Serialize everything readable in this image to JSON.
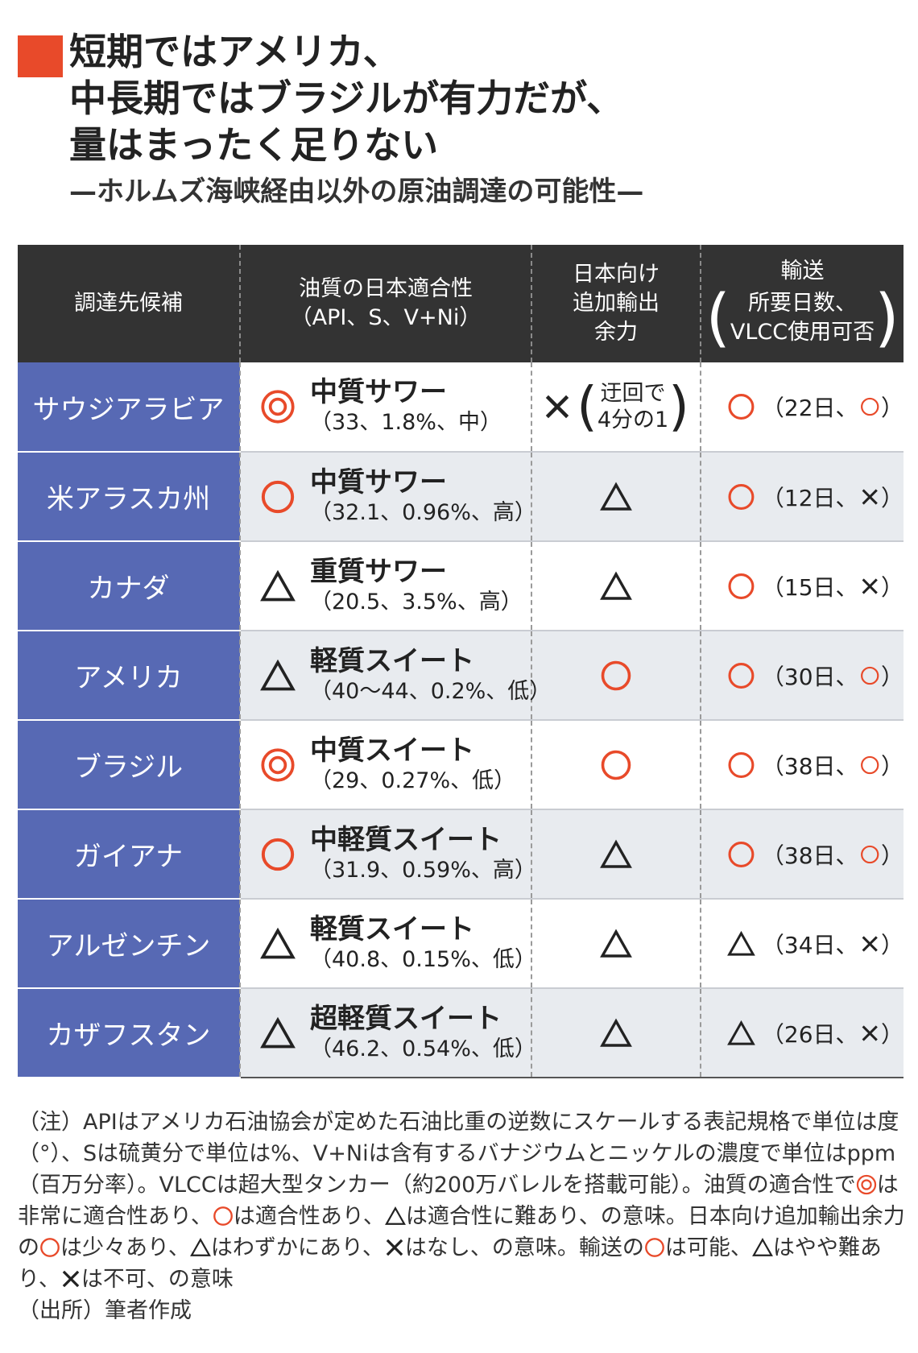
{
  "header": {
    "title_lines": [
      "短期ではアメリカ、",
      "中長期ではブラジルが有力だが、",
      "量はまったく足りない"
    ],
    "subtitle": "—ホルムズ海峡経由以外の原油調達の可能性—",
    "accent_color": "#e84a2a"
  },
  "table": {
    "columns": {
      "candidate": "調達先候補",
      "quality_l1": "油質の日本適合性",
      "quality_l2": "（API、S、V+Ni）",
      "export_l1": "日本向け",
      "export_l2": "追加輸出",
      "export_l3": "余力",
      "transport_l1": "輸送",
      "transport_l2": "所要日数、",
      "transport_l3": "VLCC使用可否"
    },
    "rows": [
      {
        "name": "サウジアラビア",
        "quality_symbol": "double-circle-icon",
        "quality_name": "中質サワー",
        "quality_values": "（33、1.8%、中）",
        "export_symbol": "cross-icon",
        "export_note_l1": "迂回で",
        "export_note_l2": "4分の1",
        "transport_symbol": "circle-icon",
        "transport_days": "（22日、",
        "transport_vlcc_symbol": "circle-icon",
        "transport_close": "）"
      },
      {
        "name": "米アラスカ州",
        "quality_symbol": "circle-icon",
        "quality_name": "中質サワー",
        "quality_values": "（32.1、0.96%、高）",
        "export_symbol": "triangle-icon",
        "transport_symbol": "circle-icon",
        "transport_days": "（12日、",
        "transport_vlcc_symbol": "cross-icon",
        "transport_close": "）"
      },
      {
        "name": "カナダ",
        "quality_symbol": "triangle-icon",
        "quality_name": "重質サワー",
        "quality_values": "（20.5、3.5%、高）",
        "export_symbol": "triangle-icon",
        "transport_symbol": "circle-icon",
        "transport_days": "（15日、",
        "transport_vlcc_symbol": "cross-icon",
        "transport_close": "）"
      },
      {
        "name": "アメリカ",
        "quality_symbol": "triangle-icon",
        "quality_name": "軽質スイート",
        "quality_values": "（40〜44、0.2%、低）",
        "export_symbol": "circle-icon",
        "transport_symbol": "circle-icon",
        "transport_days": "（30日、",
        "transport_vlcc_symbol": "circle-icon",
        "transport_close": "）"
      },
      {
        "name": "ブラジル",
        "quality_symbol": "double-circle-icon",
        "quality_name": "中質スイート",
        "quality_values": "（29、0.27%、低）",
        "export_symbol": "circle-icon",
        "transport_symbol": "circle-icon",
        "transport_days": "（38日、",
        "transport_vlcc_symbol": "circle-icon",
        "transport_close": "）"
      },
      {
        "name": "ガイアナ",
        "quality_symbol": "circle-icon",
        "quality_name": "中軽質スイート",
        "quality_values": "（31.9、0.59%、高）",
        "export_symbol": "triangle-icon",
        "transport_symbol": "circle-icon",
        "transport_days": "（38日、",
        "transport_vlcc_symbol": "circle-icon",
        "transport_close": "）"
      },
      {
        "name": "アルゼンチン",
        "quality_symbol": "triangle-icon",
        "quality_name": "軽質スイート",
        "quality_values": "（40.8、0.15%、低）",
        "export_symbol": "triangle-icon",
        "transport_symbol": "triangle-icon",
        "transport_days": "（34日、",
        "transport_vlcc_symbol": "cross-icon",
        "transport_close": "）"
      },
      {
        "name": "カザフスタン",
        "quality_symbol": "triangle-icon",
        "quality_name": "超軽質スイート",
        "quality_values": "（46.2、0.54%、低）",
        "export_symbol": "triangle-icon",
        "transport_symbol": "triangle-icon",
        "transport_days": "（26日、",
        "transport_vlcc_symbol": "cross-icon",
        "transport_close": "）"
      }
    ]
  },
  "notes": {
    "p1": "（注）APIはアメリカ石油協会が定めた石油比重の逆数にスケールする表記規格で単位は度（°）、Sは硫黄分で単位は%、V+Niは含有するバナジウムとニッケルの濃度で単位はppm（百万分率）。VLCCは超大型タンカー（約200万バレルを搭載可能）。油質の適合性で",
    "p2": "は非常に適合性あり、",
    "p3": "は適合性あり、",
    "p4": "は適合性に難あり、の意味。日本向け追加輸出余力の",
    "p5": "は少々あり、",
    "p6": "はわずかにあり、",
    "p7": "はなし、の意味。輸送の",
    "p8": "は可能、",
    "p9": "はやや難あり、",
    "p10": "は不可、の意味",
    "source": "（出所）筆者作成"
  },
  "colors": {
    "header_bg": "#333333",
    "name_bg": "#5769b4",
    "symbol_red": "#e84a2a",
    "row_gray": "#e8ebef"
  }
}
